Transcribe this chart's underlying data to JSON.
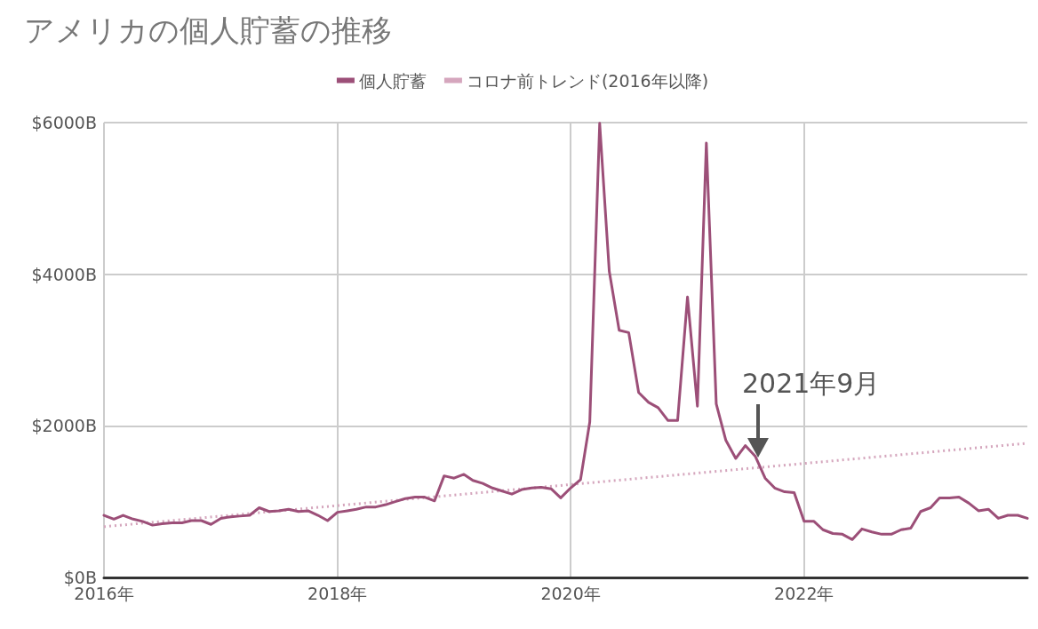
{
  "chart_data": {
    "type": "line",
    "title": "アメリカの個人貯蓄の推移",
    "x": [
      "2016-01",
      "2016-02",
      "2016-03",
      "2016-04",
      "2016-05",
      "2016-06",
      "2016-07",
      "2016-08",
      "2016-09",
      "2016-10",
      "2016-11",
      "2016-12",
      "2017-01",
      "2017-02",
      "2017-03",
      "2017-04",
      "2017-05",
      "2017-06",
      "2017-07",
      "2017-08",
      "2017-09",
      "2017-10",
      "2017-11",
      "2017-12",
      "2018-01",
      "2018-02",
      "2018-03",
      "2018-04",
      "2018-05",
      "2018-06",
      "2018-07",
      "2018-08",
      "2018-09",
      "2018-10",
      "2018-11",
      "2018-12",
      "2019-01",
      "2019-02",
      "2019-03",
      "2019-04",
      "2019-05",
      "2019-06",
      "2019-07",
      "2019-08",
      "2019-09",
      "2019-10",
      "2019-11",
      "2019-12",
      "2020-01",
      "2020-02",
      "2020-03",
      "2020-04",
      "2020-05",
      "2020-06",
      "2020-07",
      "2020-08",
      "2020-09",
      "2020-10",
      "2020-11",
      "2020-12",
      "2021-01",
      "2021-02",
      "2021-03",
      "2021-04",
      "2021-05",
      "2021-06",
      "2021-07",
      "2021-08",
      "2021-09",
      "2021-10",
      "2021-11",
      "2021-12",
      "2022-01",
      "2022-02",
      "2022-03",
      "2022-04",
      "2022-05",
      "2022-06",
      "2022-07",
      "2022-08",
      "2022-09",
      "2022-10",
      "2022-11",
      "2022-12",
      "2023-01",
      "2023-02",
      "2023-03",
      "2023-04",
      "2023-05",
      "2023-06",
      "2023-07",
      "2023-08",
      "2023-09",
      "2023-10",
      "2023-11",
      "2023-12"
    ],
    "series": [
      {
        "name": "個人貯蓄",
        "color": "#9c4f78",
        "line_style": "solid",
        "values": [
          820,
          770,
          820,
          770,
          740,
          690,
          710,
          720,
          720,
          750,
          750,
          700,
          780,
          800,
          810,
          820,
          920,
          870,
          880,
          900,
          870,
          880,
          820,
          750,
          860,
          880,
          900,
          930,
          930,
          960,
          1000,
          1040,
          1060,
          1060,
          1010,
          1340,
          1310,
          1360,
          1280,
          1240,
          1180,
          1140,
          1100,
          1160,
          1180,
          1190,
          1170,
          1050,
          1180,
          1290,
          2050,
          5990,
          4040,
          3260,
          3230,
          2440,
          2310,
          2240,
          2070,
          2070,
          3700,
          2260,
          5730,
          2290,
          1810,
          1570,
          1740,
          1600,
          1310,
          1180,
          1130,
          1120,
          740,
          740,
          630,
          580,
          570,
          500,
          640,
          600,
          570,
          570,
          630,
          650,
          870,
          920,
          1050,
          1050,
          1060,
          980,
          880,
          900,
          780,
          820,
          820,
          780
        ]
      },
      {
        "name": "コロナ前トレンド(2016年以降)",
        "color": "#d5a6bd",
        "line_style": "dotted",
        "x": [
          "2016-01",
          "2023-12"
        ],
        "values": [
          670,
          1770
        ]
      }
    ],
    "xlim": [
      "2016-01",
      "2023-12"
    ],
    "xticks": [
      {
        "value": "2016-01",
        "label": "2016年"
      },
      {
        "value": "2018-01",
        "label": "2018年"
      },
      {
        "value": "2020-01",
        "label": "2020年"
      },
      {
        "value": "2022-01",
        "label": "2022年"
      }
    ],
    "ylim": [
      0,
      6000
    ],
    "yticks": [
      {
        "value": 0,
        "label": "$0B"
      },
      {
        "value": 2000,
        "label": "$2000B"
      },
      {
        "value": 4000,
        "label": "$4000B"
      },
      {
        "value": 6000,
        "label": "$6000B"
      }
    ],
    "annotations": [
      "2021年9月"
    ],
    "grid": true,
    "legend": "top",
    "marker": "none"
  }
}
